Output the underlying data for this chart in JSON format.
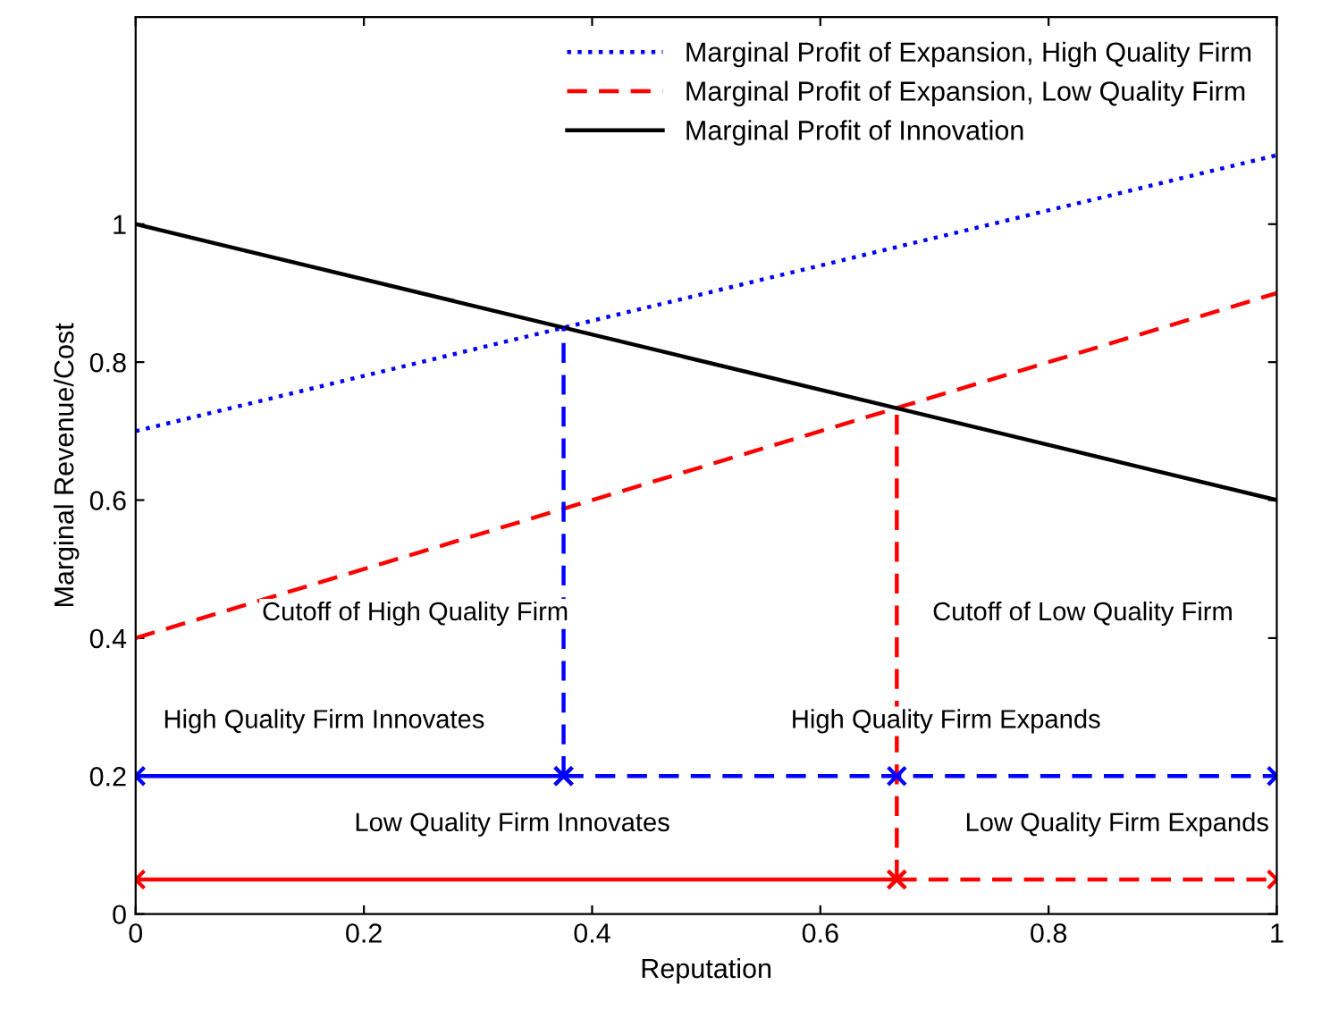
{
  "chart_data": {
    "type": "line",
    "xlabel": "Reputation",
    "ylabel": "Marginal Revenue/Cost",
    "xlim": [
      0,
      1
    ],
    "xticks": [
      0,
      0.2,
      0.4,
      0.6,
      0.8,
      1
    ],
    "ylim": [
      0,
      1.3
    ],
    "yticks": [
      0,
      0.2,
      0.4,
      0.6,
      0.8,
      1
    ],
    "grid": false,
    "legend": "top right",
    "series": [
      {
        "name": "Marginal Profit of Expansion, High Quality Firm",
        "color": "#0000ff",
        "line_style": "dotted",
        "x": [
          0,
          1
        ],
        "values": [
          0.7,
          1.1
        ]
      },
      {
        "name": "Marginal Profit of Expansion, Low Quality Firm",
        "color": "#ff0000",
        "line_style": "dashed",
        "x": [
          0,
          1
        ],
        "values": [
          0.4,
          0.9
        ]
      },
      {
        "name": "Marginal Profit of Innovation",
        "color": "#000000",
        "line_style": "solid",
        "x": [
          0,
          1
        ],
        "values": [
          1,
          0.6
        ]
      },
      {
        "color": "#0000ff",
        "line_style": "dashed",
        "x": [
          0.375,
          0.375
        ],
        "values": [
          0.2,
          0.85
        ]
      },
      {
        "color": "#ff0000",
        "line_style": "dashed",
        "x": [
          0.667,
          0.667
        ],
        "values": [
          0.05,
          0.733
        ]
      },
      {
        "color": "#0000ff",
        "line_style": "solid",
        "marker": "cross",
        "x": [
          0,
          0.375
        ],
        "values": [
          0.2,
          0.2
        ]
      },
      {
        "color": "#0000ff",
        "line_style": "dashed",
        "marker": "cross",
        "x": [
          0.375,
          0.667,
          1
        ],
        "values": [
          0.2,
          0.2,
          0.2
        ]
      },
      {
        "color": "#ff0000",
        "line_style": "solid",
        "marker": "cross",
        "x": [
          0,
          0.667
        ],
        "values": [
          0.05,
          0.05
        ]
      },
      {
        "color": "#ff0000",
        "line_style": "dashed",
        "marker": "cross",
        "x": [
          0.667,
          1
        ],
        "values": [
          0.05,
          0.05
        ]
      }
    ],
    "annotations": [
      "Cutoff of High Quality Firm",
      "Cutoff of Low Quality Firm",
      "High Quality Firm Innovates",
      "High Quality Firm Expands",
      "Low Quality Firm Innovates",
      "Low Quality Firm Expands"
    ]
  }
}
